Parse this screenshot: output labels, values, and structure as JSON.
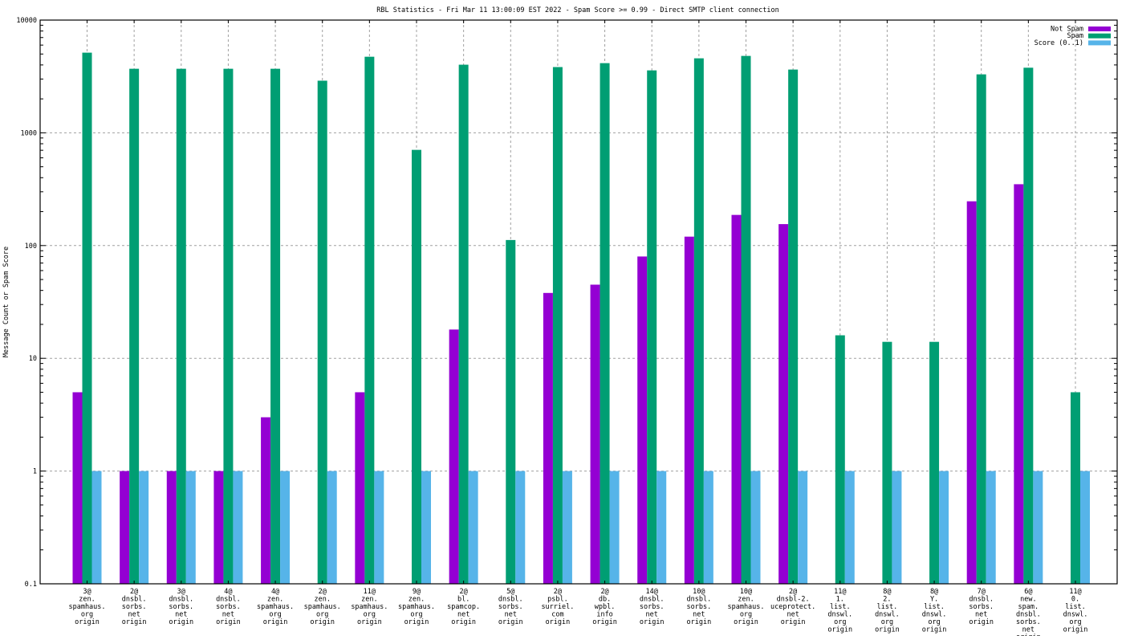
{
  "chart_data": {
    "type": "bar",
    "title": "RBL Statistics - Fri Mar 11 13:00:09 EST 2022 - Spam Score >= 0.99 - Direct SMTP client connection",
    "xlabel": "",
    "ylabel": "Message Count or Spam Score",
    "yscale": "log",
    "ylim": [
      0.1,
      10000
    ],
    "yticks": [
      "0.1",
      "1",
      "10",
      "100",
      "1000",
      "10000"
    ],
    "ytick_values": [
      0.1,
      1,
      10,
      100,
      1000,
      10000
    ],
    "grid": true,
    "legend_position": "top-right",
    "categories": [
      [
        "3@",
        "zen.",
        "spamhaus.",
        "org",
        "origin"
      ],
      [
        "2@",
        "dnsbl.",
        "sorbs.",
        "net",
        "origin"
      ],
      [
        "3@",
        "dnsbl.",
        "sorbs.",
        "net",
        "origin"
      ],
      [
        "4@",
        "dnsbl.",
        "sorbs.",
        "net",
        "origin"
      ],
      [
        "4@",
        "zen.",
        "spamhaus.",
        "org",
        "origin"
      ],
      [
        "2@",
        "zen.",
        "spamhaus.",
        "org",
        "origin"
      ],
      [
        "11@",
        "zen.",
        "spamhaus.",
        "org",
        "origin"
      ],
      [
        "9@",
        "zen.",
        "spamhaus.",
        "org",
        "origin"
      ],
      [
        "2@",
        "bl.",
        "spamcop.",
        "net",
        "origin"
      ],
      [
        "5@",
        "dnsbl.",
        "sorbs.",
        "net",
        "origin"
      ],
      [
        "2@",
        "psbl.",
        "surriel.",
        "com",
        "origin"
      ],
      [
        "2@",
        "db.",
        "wpbl.",
        "info",
        "origin"
      ],
      [
        "14@",
        "dnsbl.",
        "sorbs.",
        "net",
        "origin"
      ],
      [
        "10@",
        "dnsbl.",
        "sorbs.",
        "net",
        "origin"
      ],
      [
        "10@",
        "zen.",
        "spamhaus.",
        "org",
        "origin"
      ],
      [
        "2@",
        "dnsbl-2.",
        "uceprotect.",
        "net",
        "origin"
      ],
      [
        "11@",
        "1.",
        "list.",
        "dnswl.",
        "org",
        "origin"
      ],
      [
        "8@",
        "2.",
        "list.",
        "dnswl.",
        "org",
        "origin"
      ],
      [
        "8@",
        "Y.",
        "list.",
        "dnswl.",
        "org",
        "origin"
      ],
      [
        "7@",
        "dnsbl.",
        "sorbs.",
        "net",
        "origin"
      ],
      [
        "6@",
        "new.",
        "spam.",
        "dnsbl.",
        "sorbs.",
        "net",
        "origin"
      ],
      [
        "11@",
        "0.",
        "list.",
        "dnswl.",
        "org",
        "origin"
      ]
    ],
    "series": [
      {
        "name": "Not Spam",
        "color": "#9400d3",
        "values": [
          5,
          1,
          1,
          1,
          3,
          0,
          5,
          0,
          18,
          0,
          38,
          45,
          80,
          120,
          187,
          155,
          0,
          0,
          0,
          247,
          350,
          0
        ]
      },
      {
        "name": "Spam",
        "color": "#009e73",
        "values": [
          5140,
          3700,
          3700,
          3700,
          3700,
          2900,
          4730,
          706,
          4020,
          112,
          3830,
          4150,
          3580,
          4580,
          4810,
          3640,
          16,
          14,
          14,
          3300,
          3780,
          5
        ]
      },
      {
        "name": "Score (0..1)",
        "color": "#56b4e9",
        "values": [
          1,
          1,
          1,
          1,
          1,
          1,
          1,
          1,
          1,
          1,
          1,
          1,
          1,
          1,
          1,
          1,
          1,
          1,
          1,
          1,
          1,
          1
        ]
      }
    ]
  }
}
